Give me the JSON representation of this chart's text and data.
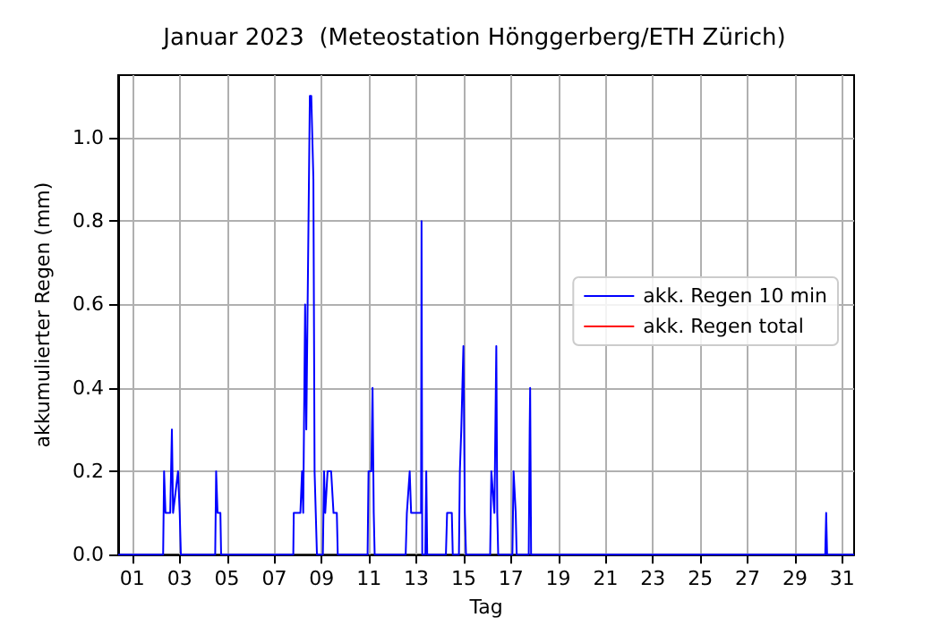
{
  "chart_data": {
    "type": "line",
    "title": "Januar 2023  (Meteostation Hönggerberg/ETH Zürich)",
    "xlabel": "Tag",
    "ylabel": "akkumulierter Regen (mm)",
    "series": [
      {
        "name": "akk. Regen 10 min",
        "color": "#0000ff",
        "x": [
          0.4,
          2.3,
          2.34,
          2.4,
          2.6,
          2.67,
          2.72,
          2.93,
          3.0,
          3.05,
          4.5,
          4.54,
          4.6,
          4.72,
          4.75,
          7.8,
          7.82,
          8.1,
          8.17,
          8.22,
          8.3,
          8.35,
          8.5,
          8.56,
          8.65,
          8.7,
          8.75,
          8.8,
          9.05,
          9.1,
          9.15,
          9.25,
          9.4,
          9.5,
          9.64,
          9.68,
          10.94,
          10.98,
          11.1,
          11.15,
          11.2,
          11.24,
          12.55,
          12.6,
          12.72,
          12.78,
          12.95,
          13.2,
          13.22,
          13.25,
          13.38,
          13.42,
          13.46,
          14.25,
          14.3,
          14.5,
          14.54,
          14.8,
          14.84,
          14.9,
          14.99,
          15.05,
          15.1,
          16.12,
          16.17,
          16.3,
          16.38,
          16.42,
          16.46,
          17.06,
          17.11,
          17.2,
          17.24,
          17.75,
          17.79,
          17.81,
          17.85,
          30.28,
          30.32,
          30.36,
          31.5
        ],
        "values": [
          0,
          0,
          0.2,
          0.1,
          0.1,
          0.3,
          0.1,
          0.2,
          0.1,
          0,
          0,
          0.2,
          0.1,
          0.1,
          0,
          0,
          0.1,
          0.1,
          0.2,
          0.1,
          0.6,
          0.3,
          1.1,
          1.1,
          0.9,
          0.2,
          0.1,
          0,
          0,
          0.2,
          0.1,
          0.2,
          0.2,
          0.1,
          0.1,
          0,
          0,
          0.2,
          0.2,
          0.4,
          0.1,
          0,
          0,
          0.1,
          0.2,
          0.1,
          0.1,
          0.1,
          0.8,
          0,
          0,
          0.2,
          0,
          0,
          0.1,
          0.1,
          0,
          0,
          0.2,
          0.3,
          0.5,
          0.1,
          0,
          0,
          0.2,
          0.1,
          0.5,
          0.1,
          0,
          0,
          0.2,
          0.1,
          0,
          0,
          0.3,
          0.4,
          0,
          0,
          0.1,
          0,
          0
        ]
      },
      {
        "name": "akk. Regen total",
        "color": "#ff0000"
      }
    ],
    "xlim": [
      0.4,
      31.5
    ],
    "xticks": [
      {
        "value": 1,
        "label": "01"
      },
      {
        "value": 3,
        "label": "03"
      },
      {
        "value": 5,
        "label": "05"
      },
      {
        "value": 7,
        "label": "07"
      },
      {
        "value": 9,
        "label": "09"
      },
      {
        "value": 11,
        "label": "11"
      },
      {
        "value": 13,
        "label": "13"
      },
      {
        "value": 15,
        "label": "15"
      },
      {
        "value": 17,
        "label": "17"
      },
      {
        "value": 19,
        "label": "19"
      },
      {
        "value": 21,
        "label": "21"
      },
      {
        "value": 23,
        "label": "23"
      },
      {
        "value": 25,
        "label": "25"
      },
      {
        "value": 27,
        "label": "27"
      },
      {
        "value": 29,
        "label": "29"
      },
      {
        "value": 31,
        "label": "31"
      }
    ],
    "ylim": [
      0,
      1.15
    ],
    "yticks": [
      {
        "value": 0,
        "label": "0.0"
      },
      {
        "value": 0.2,
        "label": "0.2"
      },
      {
        "value": 0.4,
        "label": "0.4"
      },
      {
        "value": 0.6,
        "label": "0.6"
      },
      {
        "value": 0.8,
        "label": "0.8"
      },
      {
        "value": 1,
        "label": "1.0"
      }
    ],
    "grid": true,
    "legend": "center right",
    "marker": "none",
    "line_style": "solid"
  }
}
